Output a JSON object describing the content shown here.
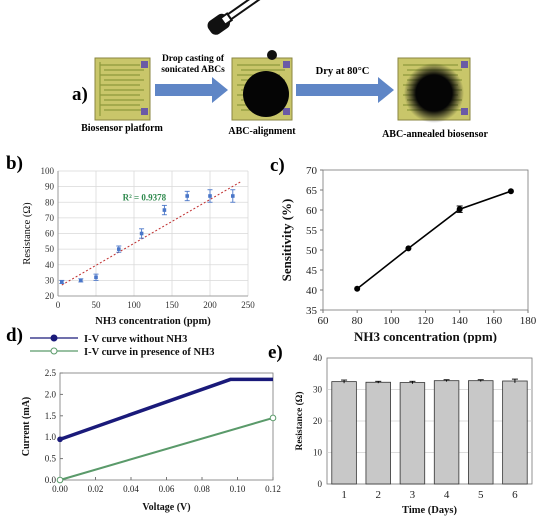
{
  "panel_a": {
    "label": "a)",
    "step1_caption": "Biosensor platform",
    "arrow1_text_line1": "Drop casting of",
    "arrow1_text_line2": "sonicated ABCs",
    "step2_caption": "ABC-alignment",
    "arrow2_text": "Dry at 80°C",
    "step3_caption": "ABC-annealed biosensor",
    "colors": {
      "chip": "#c9c66a",
      "electrode": "#8f9a3c",
      "pad": "#6a5aa6",
      "arrow": "#5f86c6",
      "drop": "#050505"
    }
  },
  "chart_data": [
    {
      "panel": "b)",
      "type": "scatter",
      "xlabel": "NH3 concentration (ppm)",
      "ylabel": "Resistance (Ω)",
      "xlim": [
        0,
        250
      ],
      "ylim": [
        20,
        100
      ],
      "xticks": [
        0,
        50,
        100,
        150,
        200,
        250
      ],
      "yticks": [
        20,
        30,
        40,
        50,
        60,
        70,
        80,
        90,
        100
      ],
      "annotation": "R² = 0.9378",
      "grid": true,
      "x": [
        5,
        30,
        50,
        80,
        110,
        140,
        170,
        200,
        230
      ],
      "y": [
        29,
        30,
        32,
        50,
        60,
        75,
        84,
        84,
        84
      ],
      "err": [
        1,
        1,
        2,
        2,
        3,
        3,
        3,
        4,
        4
      ],
      "trendline": [
        [
          5,
          27
        ],
        [
          240,
          93
        ]
      ],
      "colors": {
        "marker": "#4a76c8",
        "trend": "#c03030",
        "annotation": "#2f8a4e"
      }
    },
    {
      "panel": "c)",
      "type": "line",
      "xlabel": "NH3 concentration (ppm)",
      "ylabel": "Sensitivity (%)",
      "xlim": [
        60,
        180
      ],
      "ylim": [
        35,
        70
      ],
      "xticks": [
        60,
        80,
        100,
        120,
        140,
        160,
        180
      ],
      "yticks": [
        35,
        40,
        45,
        50,
        55,
        60,
        65,
        70
      ],
      "x": [
        80,
        110,
        140,
        170
      ],
      "y": [
        40.3,
        50.4,
        60.2,
        64.7
      ],
      "err": [
        0,
        0,
        0.8,
        0
      ],
      "colors": {
        "line": "#000000"
      }
    },
    {
      "panel": "d)",
      "type": "line",
      "xlabel": "Voltage (V)",
      "ylabel": "Current (mA)",
      "xlim": [
        0,
        0.12
      ],
      "ylim": [
        0,
        2.5
      ],
      "xticks": [
        "0.00",
        "0.02",
        "0.04",
        "0.06",
        "0.08",
        "0.10",
        "0.12"
      ],
      "yticks": [
        "0.0",
        "0.5",
        "1.0",
        "1.5",
        "2.0",
        "2.5"
      ],
      "series": [
        {
          "name": "I-V curve without NH3",
          "x": [
            0,
            0.096,
            0.12
          ],
          "y": [
            0.95,
            2.35,
            2.35
          ],
          "color": "#1a1a7a",
          "marker": "filled"
        },
        {
          "name": "I-V curve in presence of NH3",
          "x": [
            0,
            0.12
          ],
          "y": [
            0.0,
            1.45
          ],
          "color": "#5a9a6a",
          "marker": "open"
        }
      ]
    },
    {
      "panel": "e)",
      "type": "bar",
      "xlabel": "Time (Days)",
      "ylabel": "Resistance (Ω)",
      "ylim": [
        0,
        40
      ],
      "yticks": [
        0,
        10,
        20,
        30,
        40
      ],
      "grid": true,
      "categories": [
        "1",
        "2",
        "3",
        "4",
        "5",
        "6"
      ],
      "values": [
        32.5,
        32.3,
        32.2,
        32.8,
        32.8,
        32.7
      ],
      "err": [
        0.5,
        0.3,
        0.4,
        0.3,
        0.3,
        0.6
      ],
      "colors": {
        "bar": "#c8c8c8",
        "edge": "#333333"
      }
    }
  ]
}
